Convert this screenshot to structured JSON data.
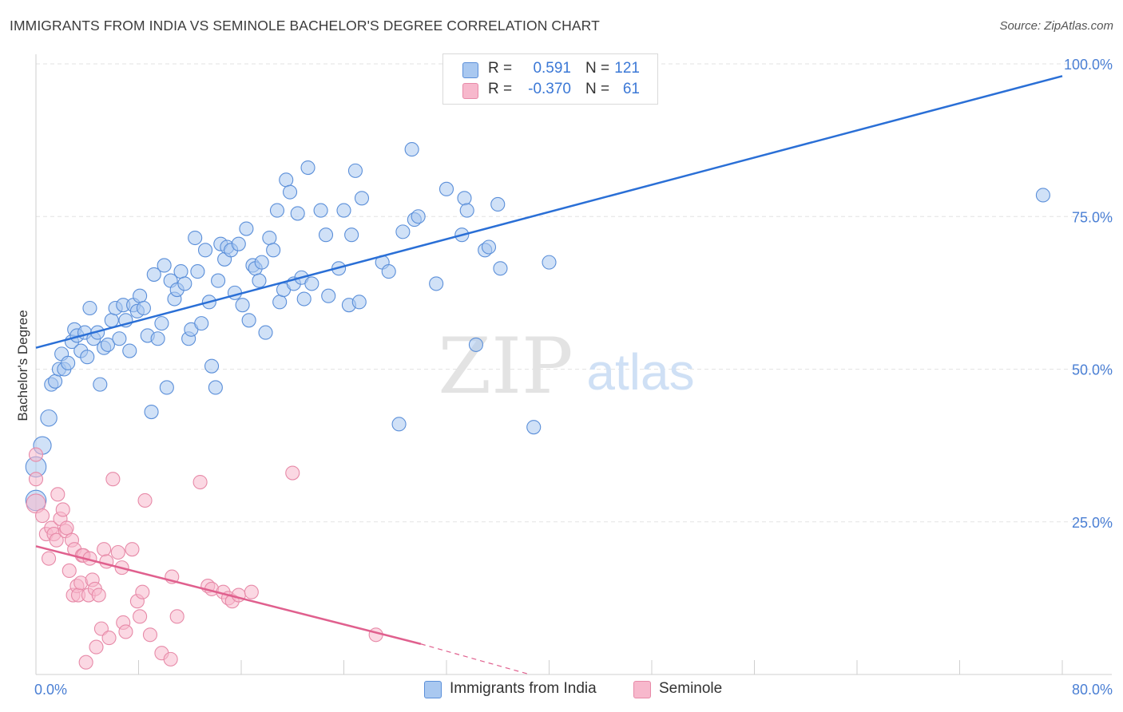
{
  "header": {
    "title": "IMMIGRANTS FROM INDIA VS SEMINOLE BACHELOR'S DEGREE CORRELATION CHART",
    "source": "Source: ZipAtlas.com"
  },
  "watermark": {
    "zip": "ZIP",
    "atlas": "atlas"
  },
  "legend": {
    "rows": [
      {
        "r_label": "R =",
        "r_value": "0.591",
        "n_label": "N =",
        "n_value": "121"
      },
      {
        "r_label": "R =",
        "r_value": "-0.370",
        "n_label": "N =",
        "n_value": "61"
      }
    ]
  },
  "bottom_legend": {
    "india": "Immigrants from India",
    "seminole": "Seminole"
  },
  "colors": {
    "india_fill": "#a9c8f0",
    "india_stroke": "#5b8fd9",
    "india_line": "#2a6fd6",
    "seminole_fill": "#f7b8cc",
    "seminole_stroke": "#e78aa8",
    "seminole_line": "#e0608e",
    "tick_text": "#4a7fd4",
    "grid": "#e3e3e3"
  },
  "chart_data": {
    "type": "scatter",
    "title": "IMMIGRANTS FROM INDIA VS SEMINOLE BACHELOR'S DEGREE CORRELATION CHART",
    "xlabel": "",
    "ylabel": "Bachelor's Degree",
    "xlim": [
      0,
      80
    ],
    "ylim": [
      0,
      100
    ],
    "x_tick_labels": [
      {
        "value": 0,
        "label": "0.0%"
      },
      {
        "value": 80,
        "label": "80.0%"
      }
    ],
    "y_tick_labels": [
      {
        "value": 25,
        "label": "25.0%"
      },
      {
        "value": 50,
        "label": "50.0%"
      },
      {
        "value": 75,
        "label": "75.0%"
      },
      {
        "value": 100,
        "label": "100.0%"
      }
    ],
    "grid": true,
    "legend_position": "top-center",
    "series": [
      {
        "name": "Immigrants from India",
        "color": "#a9c8f0",
        "trend": {
          "x0": 0,
          "y0": 53.5,
          "x1": 80,
          "y1": 98.0
        },
        "points": [
          [
            0.0,
            28.5,
            1.5
          ],
          [
            0.0,
            34.0,
            1.5
          ],
          [
            0.5,
            37.5,
            1.3
          ],
          [
            1.0,
            42.0,
            1.2
          ],
          [
            1.2,
            47.5,
            1.0
          ],
          [
            1.5,
            48.0,
            1.0
          ],
          [
            1.8,
            50.0,
            1.0
          ],
          [
            2.0,
            52.5,
            1.0
          ],
          [
            2.2,
            50.0,
            1.0
          ],
          [
            2.5,
            51.0,
            1.0
          ],
          [
            2.8,
            54.5,
            1.0
          ],
          [
            3.0,
            56.5,
            1.0
          ],
          [
            3.2,
            55.5,
            1.0
          ],
          [
            3.5,
            53.0,
            1.0
          ],
          [
            3.8,
            56.0,
            1.0
          ],
          [
            4.0,
            52.0,
            1.0
          ],
          [
            4.2,
            60.0,
            1.0
          ],
          [
            4.5,
            55.0,
            1.0
          ],
          [
            4.8,
            56.0,
            1.0
          ],
          [
            5.0,
            47.5,
            1.0
          ],
          [
            5.3,
            53.5,
            1.0
          ],
          [
            5.6,
            54.0,
            1.0
          ],
          [
            5.9,
            58.0,
            1.0
          ],
          [
            6.2,
            60.0,
            1.0
          ],
          [
            6.5,
            55.0,
            1.0
          ],
          [
            6.8,
            60.5,
            1.0
          ],
          [
            7.0,
            58.0,
            1.0
          ],
          [
            7.3,
            53.0,
            1.0
          ],
          [
            7.6,
            60.5,
            1.0
          ],
          [
            7.9,
            59.5,
            1.0
          ],
          [
            8.1,
            62.0,
            1.0
          ],
          [
            8.4,
            60.0,
            1.0
          ],
          [
            8.7,
            55.5,
            1.0
          ],
          [
            9.0,
            43.0,
            1.0
          ],
          [
            9.2,
            65.5,
            1.0
          ],
          [
            9.5,
            55.0,
            1.0
          ],
          [
            9.8,
            57.5,
            1.0
          ],
          [
            10.0,
            67.0,
            1.0
          ],
          [
            10.2,
            47.0,
            1.0
          ],
          [
            10.5,
            64.5,
            1.0
          ],
          [
            10.8,
            61.5,
            1.0
          ],
          [
            11.0,
            63.0,
            1.0
          ],
          [
            11.3,
            66.0,
            1.0
          ],
          [
            11.6,
            64.0,
            1.0
          ],
          [
            11.9,
            55.0,
            1.0
          ],
          [
            12.1,
            56.5,
            1.0
          ],
          [
            12.4,
            71.5,
            1.0
          ],
          [
            12.6,
            66.0,
            1.0
          ],
          [
            12.9,
            57.5,
            1.0
          ],
          [
            13.2,
            69.5,
            1.0
          ],
          [
            13.5,
            61.0,
            1.0
          ],
          [
            13.7,
            50.5,
            1.0
          ],
          [
            14.0,
            47.0,
            1.0
          ],
          [
            14.2,
            64.5,
            1.0
          ],
          [
            14.4,
            70.5,
            1.0
          ],
          [
            14.7,
            68.0,
            1.0
          ],
          [
            14.9,
            70.0,
            1.0
          ],
          [
            15.2,
            69.5,
            1.0
          ],
          [
            15.5,
            62.5,
            1.0
          ],
          [
            15.8,
            70.5,
            1.0
          ],
          [
            16.1,
            60.5,
            1.0
          ],
          [
            16.4,
            73.0,
            1.0
          ],
          [
            16.6,
            58.0,
            1.0
          ],
          [
            16.9,
            67.0,
            1.0
          ],
          [
            17.1,
            66.5,
            1.0
          ],
          [
            17.4,
            64.5,
            1.0
          ],
          [
            17.6,
            67.5,
            1.0
          ],
          [
            17.9,
            56.0,
            1.0
          ],
          [
            18.2,
            71.5,
            1.0
          ],
          [
            18.5,
            69.5,
            1.0
          ],
          [
            18.8,
            76.0,
            1.0
          ],
          [
            19.0,
            61.0,
            1.0
          ],
          [
            19.3,
            63.0,
            1.0
          ],
          [
            19.5,
            81.0,
            1.0
          ],
          [
            19.8,
            79.0,
            1.0
          ],
          [
            20.1,
            64.0,
            1.0
          ],
          [
            20.4,
            75.5,
            1.0
          ],
          [
            20.7,
            65.0,
            1.0
          ],
          [
            20.9,
            61.5,
            1.0
          ],
          [
            21.2,
            83.0,
            1.0
          ],
          [
            21.5,
            64.0,
            1.0
          ],
          [
            22.2,
            76.0,
            1.0
          ],
          [
            22.6,
            72.0,
            1.0
          ],
          [
            22.8,
            62.0,
            1.0
          ],
          [
            23.6,
            66.5,
            1.0
          ],
          [
            24.0,
            76.0,
            1.0
          ],
          [
            24.4,
            60.5,
            1.0
          ],
          [
            24.6,
            72.0,
            1.0
          ],
          [
            24.9,
            82.5,
            1.0
          ],
          [
            25.2,
            61.0,
            1.0
          ],
          [
            25.4,
            78.0,
            1.0
          ],
          [
            27.0,
            67.5,
            1.0
          ],
          [
            27.5,
            66.0,
            1.0
          ],
          [
            28.3,
            41.0,
            1.0
          ],
          [
            28.6,
            72.5,
            1.0
          ],
          [
            29.3,
            86.0,
            1.0
          ],
          [
            29.5,
            74.5,
            1.0
          ],
          [
            29.8,
            75.0,
            1.0
          ],
          [
            31.2,
            64.0,
            1.0
          ],
          [
            32.0,
            79.5,
            1.0
          ],
          [
            33.2,
            72.0,
            1.0
          ],
          [
            33.4,
            78.0,
            1.0
          ],
          [
            33.6,
            76.0,
            1.0
          ],
          [
            34.3,
            54.0,
            1.0
          ],
          [
            35.0,
            69.5,
            1.0
          ],
          [
            35.3,
            70.0,
            1.0
          ],
          [
            36.0,
            77.0,
            1.0
          ],
          [
            36.2,
            66.5,
            1.0
          ],
          [
            38.8,
            40.5,
            1.0
          ],
          [
            40.0,
            67.5,
            1.0
          ],
          [
            78.5,
            78.5,
            1.0
          ]
        ]
      },
      {
        "name": "Seminole",
        "color": "#f7b8cc",
        "trend": {
          "x0": 0,
          "y0": 21.0,
          "x1": 30,
          "y1": 5.0,
          "dash_to_x": 38.5,
          "dash_to_y": 0
        },
        "points": [
          [
            0.0,
            28.0,
            1.4
          ],
          [
            0.0,
            32.0,
            1.0
          ],
          [
            0.0,
            36.0,
            1.0
          ],
          [
            0.5,
            26.0,
            1.0
          ],
          [
            0.8,
            23.0,
            1.0
          ],
          [
            1.0,
            19.0,
            1.0
          ],
          [
            1.2,
            24.0,
            1.0
          ],
          [
            1.4,
            23.0,
            1.0
          ],
          [
            1.6,
            22.0,
            1.0
          ],
          [
            1.7,
            29.5,
            1.0
          ],
          [
            1.9,
            25.5,
            1.0
          ],
          [
            2.1,
            27.0,
            1.0
          ],
          [
            2.3,
            23.5,
            1.0
          ],
          [
            2.4,
            24.0,
            1.0
          ],
          [
            2.6,
            17.0,
            1.0
          ],
          [
            2.8,
            22.0,
            1.0
          ],
          [
            2.9,
            13.0,
            1.0
          ],
          [
            3.0,
            20.5,
            1.0
          ],
          [
            3.2,
            14.5,
            1.0
          ],
          [
            3.3,
            13.0,
            1.0
          ],
          [
            3.5,
            15.0,
            1.0
          ],
          [
            3.6,
            19.5,
            1.0
          ],
          [
            3.7,
            19.5,
            1.0
          ],
          [
            3.9,
            2.0,
            1.0
          ],
          [
            4.1,
            13.0,
            1.0
          ],
          [
            4.2,
            19.0,
            1.0
          ],
          [
            4.4,
            15.5,
            1.0
          ],
          [
            4.6,
            14.0,
            1.0
          ],
          [
            4.7,
            4.5,
            1.0
          ],
          [
            4.9,
            13.0,
            1.0
          ],
          [
            5.1,
            7.5,
            1.0
          ],
          [
            5.3,
            20.5,
            1.0
          ],
          [
            5.5,
            18.5,
            1.0
          ],
          [
            5.7,
            6.0,
            1.0
          ],
          [
            6.0,
            32.0,
            1.0
          ],
          [
            6.4,
            20.0,
            1.0
          ],
          [
            6.7,
            17.5,
            1.0
          ],
          [
            6.8,
            8.5,
            1.0
          ],
          [
            7.0,
            7.0,
            1.0
          ],
          [
            7.5,
            20.5,
            1.0
          ],
          [
            7.9,
            12.0,
            1.0
          ],
          [
            8.1,
            9.5,
            1.0
          ],
          [
            8.3,
            13.5,
            1.0
          ],
          [
            8.5,
            28.5,
            1.0
          ],
          [
            8.9,
            6.5,
            1.0
          ],
          [
            9.8,
            3.5,
            1.0
          ],
          [
            10.5,
            2.5,
            1.0
          ],
          [
            10.6,
            16.0,
            1.0
          ],
          [
            11.0,
            9.5,
            1.0
          ],
          [
            12.8,
            31.5,
            1.0
          ],
          [
            13.4,
            14.5,
            1.0
          ],
          [
            13.7,
            14.0,
            1.0
          ],
          [
            14.6,
            13.5,
            1.0
          ],
          [
            15.0,
            12.5,
            1.0
          ],
          [
            15.3,
            12.0,
            1.0
          ],
          [
            15.8,
            13.0,
            1.0
          ],
          [
            16.8,
            13.5,
            1.0
          ],
          [
            20.0,
            33.0,
            1.0
          ],
          [
            26.5,
            6.5,
            1.0
          ]
        ]
      }
    ]
  }
}
